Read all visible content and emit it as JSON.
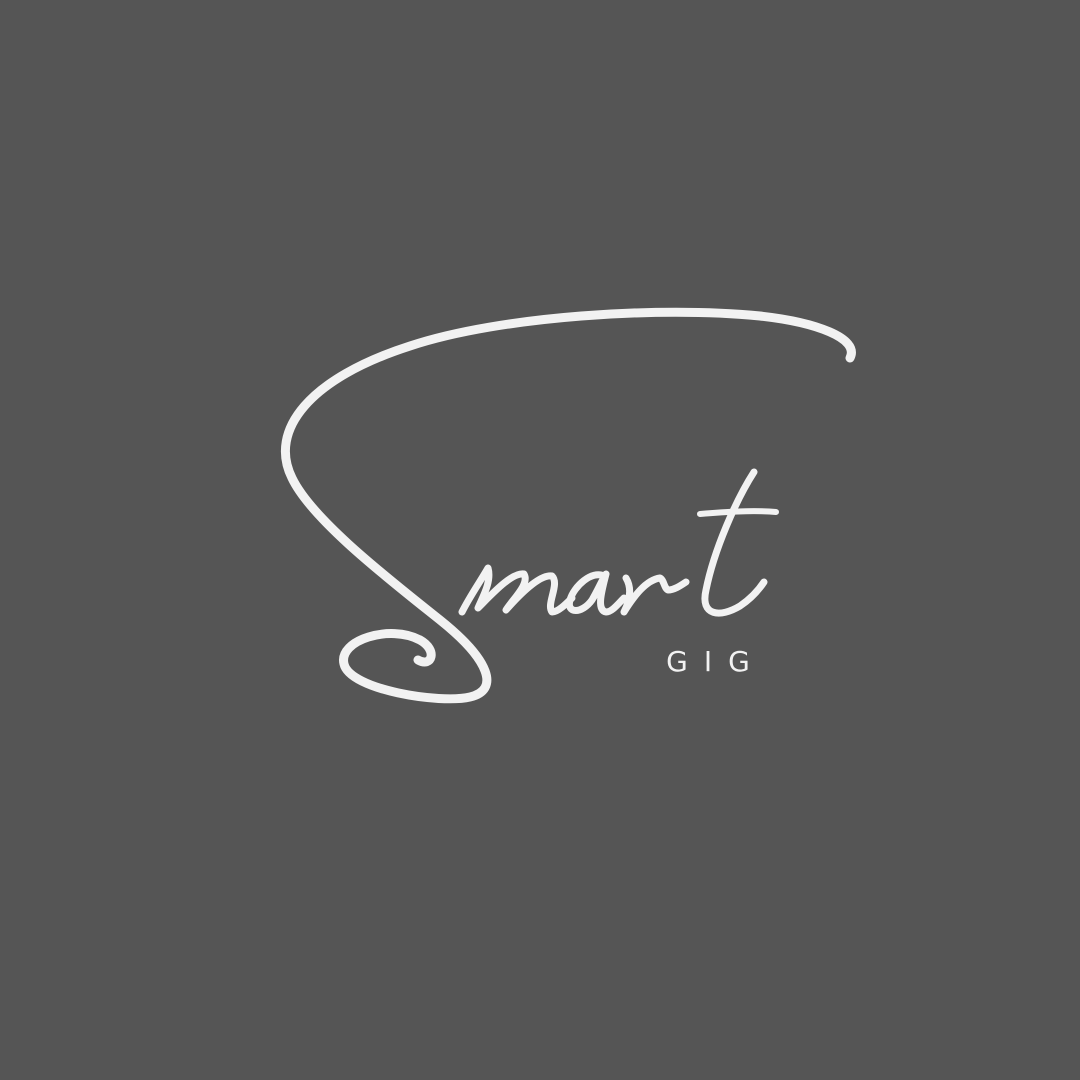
{
  "logo": {
    "script_word": "Smart",
    "subtitle": "GIG"
  },
  "colors": {
    "background": "#555555",
    "ink": "#f2f2f2"
  }
}
